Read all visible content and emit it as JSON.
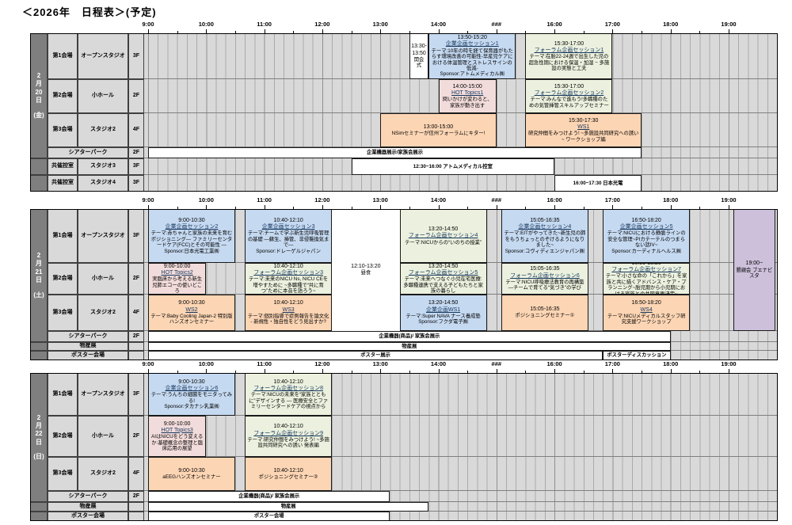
{
  "title": "＜2026年　日程表＞(予定)",
  "timeline": {
    "hour_labels": [
      "9:00",
      "10:00",
      "11:00",
      "12:00",
      "13:00",
      "14:00",
      "###",
      "16:00",
      "17:00",
      "18:00",
      "19:00"
    ]
  },
  "colors": {
    "corp": "#c5d9f1",
    "forum": "#ebf1de",
    "hot": "#f2dcdb",
    "ws": "#fcd5b4",
    "social": "#ccc0da",
    "white": "#ffffff",
    "grid_bg": "#d9d9d9",
    "date_bg": "#7f7f7f"
  },
  "days": [
    {
      "date_lines": [
        "2",
        "月",
        "20",
        "日"
      ],
      "dow": "(金)",
      "rows": [
        {
          "venue": "第1会場",
          "room": "オープンスタジオ",
          "floor": "3F"
        },
        {
          "venue": "第2会場",
          "room": "小ホール",
          "floor": "2F"
        },
        {
          "venue": "第3会場",
          "room": "スタジオ2",
          "floor": "4F"
        },
        {
          "venue": "シアターパーク",
          "merge": true,
          "floor": "2F"
        },
        {
          "venue": "共催控室",
          "room": "スタジオ3",
          "floor": "3F"
        },
        {
          "venue": "共催控室",
          "room": "スタジオ4",
          "floor": "3F"
        }
      ],
      "events": [
        {
          "row": 0,
          "start": "13:30",
          "end": "13:50",
          "color": "white",
          "time": "13:30-13:50",
          "body": "開会式"
        },
        {
          "row": 0,
          "start": "13:50",
          "end": "15:20",
          "color": "corp",
          "time": "13:50-15:20",
          "title": "企業企画セッション1",
          "body": "テーマ:10年の時を経て保育器がもたらす環境改善の可能性-早産児ケアにおける体温管理とストレスサインの低減-",
          "sponsor": "Sponsor:アトムメディカル㈱"
        },
        {
          "row": 0,
          "start": "15:30",
          "end": "17:00",
          "color": "forum",
          "time": "15:30-17:00",
          "title": "フォーラム企画セッション1",
          "body": "テーマ:在胎22-24週で出生した児の超急性期における保温・加湿 − 多施設の実態と工夫"
        },
        {
          "row": 1,
          "start": "14:00",
          "end": "15:00",
          "color": "hot",
          "time": "14:00-15:00",
          "title": "HOT Topics1",
          "body": "問いかけが変わると、家族が動き出す"
        },
        {
          "row": 1,
          "start": "15:30",
          "end": "17:00",
          "color": "forum",
          "time": "15:30-17:00",
          "title": "フォーラム企画セッション2",
          "body": "テーマ:みんなで進もう!多職種のための気管挿管スキルアップセミナー"
        },
        {
          "row": 2,
          "start": "13:00",
          "end": "15:00",
          "color": "ws",
          "time": "13:00-15:00",
          "body": "NSimセミナーが信州フォーラムにキター!"
        },
        {
          "row": 2,
          "start": "15:30",
          "end": "17:30",
          "color": "ws",
          "time": "15:30-17:30",
          "title": "WS1",
          "body": "研究仲間をみつけよう! ~多施設共同研究への誘い~ ワークショップ編"
        },
        {
          "row": 3,
          "start": "9:00",
          "end": "17:30",
          "color": "white",
          "body": "企業機器展示/家族会展示",
          "bold": true
        },
        {
          "row": 4,
          "start": "12:30",
          "end": "16:00",
          "color": "white",
          "body": "12:30~16:00 アトムメディカル控室",
          "bold": true
        },
        {
          "row": 5,
          "start": "16:00",
          "end": "17:30",
          "color": "white",
          "body": "16:00~17:30 日本光電",
          "bold": true
        }
      ]
    },
    {
      "date_lines": [
        "2",
        "月",
        "21",
        "日"
      ],
      "dow": "(土)",
      "rows": [
        {
          "venue": "第1会場",
          "room": "オープンスタジオ",
          "floor": "3F"
        },
        {
          "venue": "第2会場",
          "room": "小ホール",
          "floor": "2F"
        },
        {
          "venue": "第3会場",
          "room": "スタジオ2",
          "floor": "4F"
        },
        {
          "venue": "シアターパーク",
          "merge": true,
          "floor": "2F"
        },
        {
          "venue": "物産展",
          "merge": true,
          "floor": ""
        },
        {
          "venue": "ポスター会場",
          "merge": true,
          "floor": ""
        }
      ],
      "events": [
        {
          "row": 0,
          "start": "9:00",
          "end": "10:30",
          "color": "corp",
          "time": "9:00-10:30",
          "title": "企業企画セッション2",
          "body": "テーマ:赤ちゃんと家族の未来を育むポジショニング— ファミリーセンタードケア(FCC)とその可能性 —",
          "sponsor": "Sponsor:日本光電工業㈱"
        },
        {
          "row": 0,
          "start": "10:40",
          "end": "12:10",
          "color": "corp",
          "time": "10:40-12:10",
          "title": "企業企画セッション3",
          "body": "テーマ:チームで学ぶ新生児呼吸管理の基礎 ―蘇生、挿管、非侵襲換気まで―",
          "sponsor": "Sponsor:ドレーゲルジャパン"
        },
        {
          "row": 0,
          "span": 3,
          "start": "12:10",
          "end": "13:20",
          "color": "white",
          "time": "12:10-13:20",
          "body": "昼食",
          "noborder": true
        },
        {
          "row": 0,
          "start": "13:20",
          "end": "14:50",
          "color": "forum",
          "time": "13:20-14:50",
          "title": "フォーラム企画セッション4",
          "body": "テーマ:NICUからの“いのちの授業”"
        },
        {
          "row": 0,
          "start": "15:05",
          "end": "16:35",
          "color": "corp",
          "time": "15:05-16:35",
          "title": "企業企画セッション4",
          "body": "テーマ:EITがやってきた~新生児の肺をもうちょっとのぞけるようになりました~",
          "sponsor": "Sponsor:コヴィディエンジャパン㈱"
        },
        {
          "row": 0,
          "start": "16:50",
          "end": "18:20",
          "color": "corp",
          "time": "16:50-18:20",
          "title": "企業企画セッション5",
          "body": "テーマ:NICUにおける静脈ラインの安全な管理~PIカテーテルのつまらない話IV~",
          "sponsor": "Sponsor:カーディナルヘルス㈱"
        },
        {
          "row": 1,
          "start": "9:00",
          "end": "10:00",
          "color": "hot",
          "time": "9:00-10:00",
          "title": "HOT Topics2",
          "body": "実臨床から考える新生児肺エコーの使いどころ"
        },
        {
          "row": 1,
          "start": "10:40",
          "end": "12:10",
          "color": "forum",
          "time": "10:40-12:10",
          "title": "フォーラム企画セッション3",
          "body": "テーマ:未来のNICU Ns, NICU CEを増やすために ~多職種で“共に育つ”ために本音を語ろう~"
        },
        {
          "row": 1,
          "start": "13:20",
          "end": "14:50",
          "color": "forum",
          "time": "13:20-14:50",
          "title": "フォーラム企画セッション5",
          "body": "テーマ:未来へつなぐ小児在宅医療:多職種連携で支える子どもたちと家族の暮らし"
        },
        {
          "row": 1,
          "start": "15:05",
          "end": "16:35",
          "color": "forum",
          "time": "15:05-16:35",
          "title": "フォーラム企画セッション6",
          "body": "テーマ:NICU呼吸療法教育の再構築―チームで育てる“気づき”の学び"
        },
        {
          "row": 1,
          "start": "16:50",
          "end": "18:20",
          "color": "forum",
          "time": "16:50-18:20",
          "title": "フォーラム企画セッション7",
          "body": "テーマ:小さな命の「これから」を家族と共に描くアドバンス・ケア・プランニング~胎児期から小児期における家族との共同意思決定~"
        },
        {
          "row": 2,
          "start": "9:00",
          "end": "10:30",
          "color": "ws",
          "time": "9:00-10:30",
          "title": "WS2",
          "body": "テーマ:Baby Cooling Japan-2 特別版 ハンズオンセミナー"
        },
        {
          "row": 2,
          "start": "10:40",
          "end": "12:10",
          "color": "ws",
          "time": "10:40-12:10",
          "title": "WS3",
          "body": "テーマ:個別指導で症例報告を論文化 - 新規性・独自性をどう見出すか?"
        },
        {
          "row": 2,
          "start": "13:20",
          "end": "14:50",
          "color": "corp",
          "time": "13:20-14:50",
          "title": "企業企画WS1",
          "body": "テーマ:Super NAVA ナース養成塾",
          "sponsor": "Sponsor:フクダ電子㈱"
        },
        {
          "row": 2,
          "start": "15:05",
          "end": "16:35",
          "color": "ws",
          "time": "15:05-16:35",
          "body": "ポジショニングセミナー①"
        },
        {
          "row": 2,
          "start": "16:50",
          "end": "18:20",
          "color": "ws",
          "time": "16:50-18:20",
          "title": "WS4",
          "body": "テーマ:NICUメディカルスタッフ研究支援ワークショップ"
        },
        {
          "row": 0,
          "span": 3,
          "start": "19:05",
          "end": "19:48",
          "color": "social",
          "time": "19:00~",
          "body": "懇親会 ブエナビスタ"
        },
        {
          "row": 3,
          "start": "9:00",
          "end": "18:00",
          "color": "white",
          "body": "企業機器(商品)/ 家族会展示",
          "bold": true
        },
        {
          "row": 4,
          "start": "9:00",
          "end": "18:00",
          "color": "white",
          "body": "物産展",
          "bold": true
        },
        {
          "row": 5,
          "start": "9:00",
          "end": "16:50",
          "color": "white",
          "body": "ポスター展示",
          "bold": true
        },
        {
          "row": 5,
          "start": "16:50",
          "end": "18:00",
          "color": "white",
          "body": "ポスターディスカッション",
          "bold": true
        }
      ]
    },
    {
      "date_lines": [
        "2",
        "月",
        "22",
        "日"
      ],
      "dow": "(日)",
      "rows": [
        {
          "venue": "第1会場",
          "room": "オープンスタジオ",
          "floor": "3F"
        },
        {
          "venue": "第2会場",
          "room": "小ホール",
          "floor": "2F"
        },
        {
          "venue": "第3会場",
          "room": "スタジオ2",
          "floor": "4F"
        },
        {
          "venue": "シアターパーク",
          "merge": true,
          "floor": "2F"
        },
        {
          "venue": "物産展",
          "merge": true,
          "floor": ""
        },
        {
          "venue": "ポスター会場",
          "merge": true,
          "floor": ""
        }
      ],
      "events": [
        {
          "row": 0,
          "start": "9:00",
          "end": "10:30",
          "color": "corp",
          "time": "9:00-10:30",
          "title": "企業企画セッション6",
          "body": "テーマ:うんちの細菌をモニタってみる!",
          "sponsor": "Sponsor:タカナシ乳業㈱"
        },
        {
          "row": 0,
          "start": "10:40",
          "end": "12:10",
          "color": "forum",
          "time": "10:40-12:10",
          "title": "フォーラム企画セッション8",
          "body": "テーマ:NICUの未来を“家族とともに”デザインする ― 医療安全とファミリーセンタードケアの視点から"
        },
        {
          "row": 1,
          "start": "9:00",
          "end": "10:00",
          "color": "hot",
          "time": "9:00-10:00",
          "title": "HOT Topics3",
          "body": "AIはNICUをどう変えるか:基礎概念の整理と臨床応用の展望"
        },
        {
          "row": 1,
          "start": "10:40",
          "end": "12:10",
          "color": "forum",
          "time": "10:40-12:10",
          "title": "フォーラム企画セッション9",
          "body": "テーマ:研究仲間をみつけよう! ~多施設共同研究への誘い 発表編"
        },
        {
          "row": 2,
          "start": "9:00",
          "end": "10:30",
          "color": "ws",
          "time": "9:00-10:30",
          "body": "aEEGハンズオンセミナー"
        },
        {
          "row": 2,
          "start": "10:40",
          "end": "12:10",
          "color": "ws",
          "time": "10:40-12:10",
          "body": "ポジショニングセミナー②"
        },
        {
          "row": 3,
          "start": "9:00",
          "end": "13:10",
          "color": "white",
          "body": "企業機器(商品)/ 家族会展示",
          "bold": true
        },
        {
          "row": 4,
          "start": "9:00",
          "end": "13:50",
          "color": "white",
          "body": "物産展",
          "bold": true
        },
        {
          "row": 5,
          "start": "9:00",
          "end": "13:10",
          "color": "white",
          "body": "ポスター会場",
          "bold": true
        }
      ]
    }
  ]
}
